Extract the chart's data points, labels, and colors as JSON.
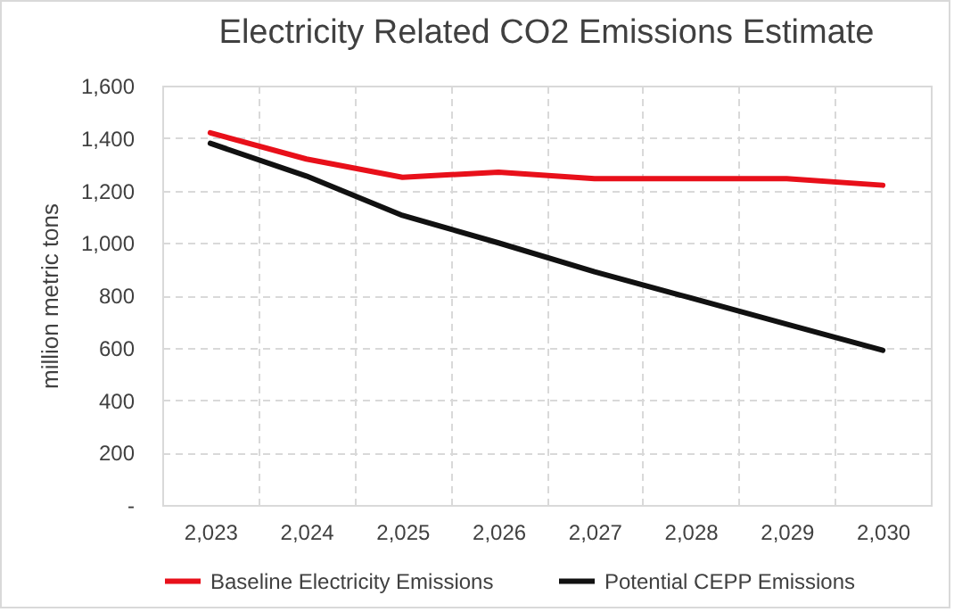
{
  "chart_data": {
    "type": "line",
    "title": "Electricity Related CO2 Emissions Estimate",
    "ylabel": "million metric tons",
    "categories": [
      "2,023",
      "2,024",
      "2,025",
      "2,026",
      "2,027",
      "2,028",
      "2,029",
      "2,030"
    ],
    "series": [
      {
        "name": "Baseline Electricity Emissions",
        "color": "#e8101a",
        "values": [
          1420,
          1320,
          1250,
          1270,
          1245,
          1245,
          1245,
          1220
        ]
      },
      {
        "name": "Potential CEPP Emissions",
        "color": "#111111",
        "values": [
          1380,
          1255,
          1105,
          1000,
          890,
          790,
          690,
          590
        ]
      }
    ],
    "ylim": [
      0,
      1600
    ],
    "yticks": [
      {
        "value": 0,
        "label": "-"
      },
      200,
      400,
      600,
      800,
      {
        "value": 1000,
        "label": "1,000"
      },
      {
        "value": 1200,
        "label": "1,200"
      },
      {
        "value": 1400,
        "label": "1,400"
      },
      {
        "value": 1600,
        "label": "1,600"
      }
    ],
    "grid": true,
    "legend": "bottom",
    "marker": "none",
    "line_style": "solid"
  }
}
